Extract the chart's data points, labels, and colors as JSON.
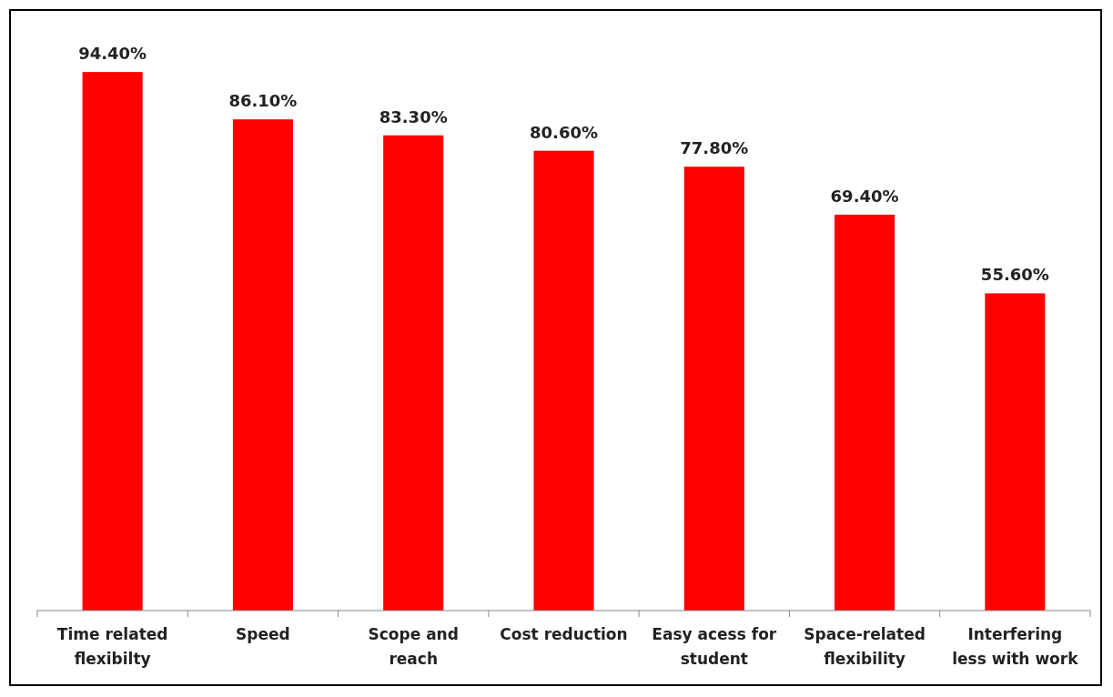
{
  "chart_data": {
    "type": "bar",
    "categories": [
      "Time related flexibilty",
      "Speed",
      "Scope and reach",
      "Cost reduction",
      "Easy acess for student",
      "Space-related flexibility",
      "Interfering less with work"
    ],
    "values": [
      94.4,
      86.1,
      83.3,
      80.6,
      77.8,
      69.4,
      55.6
    ],
    "value_labels": [
      "94.40%",
      "86.10%",
      "83.30%",
      "80.60%",
      "77.80%",
      "69.40%",
      "55.60%"
    ],
    "color": "#ff0000"
  }
}
